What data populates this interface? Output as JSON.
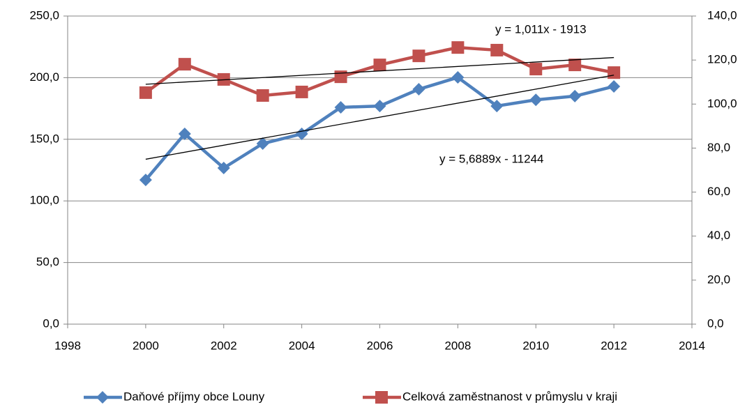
{
  "chart_data": {
    "type": "line",
    "x": [
      2000,
      2001,
      2002,
      2003,
      2004,
      2005,
      2006,
      2007,
      2008,
      2009,
      2010,
      2011,
      2012
    ],
    "series": [
      {
        "name": "Daňové příjmy obce Louny",
        "color": "#4f81bd",
        "marker": "diamond",
        "axis": "y",
        "values": [
          117,
          154.4,
          126.7,
          146.5,
          154.4,
          175.9,
          177,
          190.6,
          200.2,
          177,
          182,
          185,
          192.9
        ]
      },
      {
        "name": "Celková zaměstnanost v průmyslu v kraji",
        "color": "#c0504d",
        "marker": "square",
        "axis": "y2",
        "values": [
          105.2,
          118.1,
          111.2,
          103.9,
          105.5,
          112.4,
          117.8,
          121.9,
          125.7,
          124.5,
          115.9,
          117.8,
          114.3
        ]
      }
    ],
    "trendlines": [
      {
        "label": "y = 5,6889x - 11244",
        "slope": 5.6889,
        "intercept": -11244,
        "axis": "y"
      },
      {
        "label": "y = 1,011x - 1913",
        "slope": 1.011,
        "intercept": -1913,
        "axis": "y2"
      }
    ],
    "xlim": [
      1998,
      2014
    ],
    "xticks": [
      1998,
      2000,
      2002,
      2004,
      2006,
      2008,
      2010,
      2012,
      2014
    ],
    "ylim": [
      0,
      250
    ],
    "yticks": [
      {
        "value": 0,
        "label": "0,0"
      },
      {
        "value": 50,
        "label": "50,0"
      },
      {
        "value": 100,
        "label": "100,0"
      },
      {
        "value": 150,
        "label": "150,0"
      },
      {
        "value": 200,
        "label": "200,0"
      },
      {
        "value": 250,
        "label": "250,0"
      }
    ],
    "y2lim": [
      0,
      140
    ],
    "y2ticks": [
      {
        "value": 0,
        "label": "0,0"
      },
      {
        "value": 20,
        "label": "20,0"
      },
      {
        "value": 40,
        "label": "40,0"
      },
      {
        "value": 60,
        "label": "60,0"
      },
      {
        "value": 80,
        "label": "80,0"
      },
      {
        "value": 100,
        "label": "100,0"
      },
      {
        "value": 120,
        "label": "120,0"
      },
      {
        "value": 140,
        "label": "140,0"
      }
    ],
    "grid": true,
    "legend": "bottom"
  }
}
